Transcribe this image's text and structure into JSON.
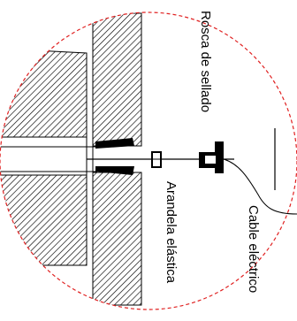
{
  "labels": {
    "sealing_thread": "Rosca de sellado",
    "elastic_washer": "Arandela elástica",
    "electric_cable": "Cable eléctrico"
  },
  "colors": {
    "boundary": "#e02020",
    "line": "#000000",
    "background": "#ffffff"
  }
}
